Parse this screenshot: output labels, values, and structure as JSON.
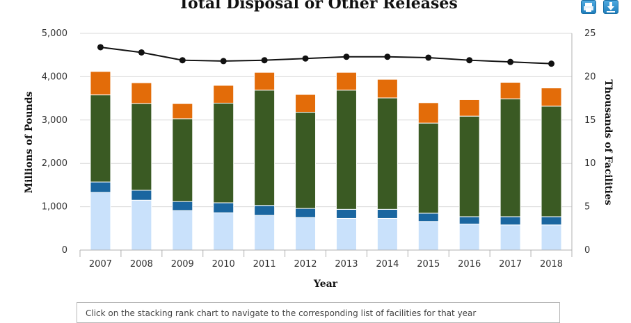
{
  "buttons": {
    "print_icon": "printer-icon",
    "download_icon": "download-icon"
  },
  "note": {
    "text": "Click on the stacking rank chart to navigate to the corresponding list of facilities for that year"
  },
  "chart_data": {
    "type": "bar",
    "title": "Total Disposal or Other Releases",
    "xlabel": "Year",
    "ylabel": "Millions of Pounds",
    "y2label": "Thousands of Facilities",
    "ylim": [
      0,
      5000
    ],
    "y2lim": [
      0,
      25
    ],
    "yticks": [
      "0",
      "1,000",
      "2,000",
      "3,000",
      "4,000",
      "5,000"
    ],
    "y2ticks": [
      "0",
      "5",
      "10",
      "15",
      "20",
      "25"
    ],
    "categories": [
      "2007",
      "2008",
      "2009",
      "2010",
      "2011",
      "2012",
      "2013",
      "2014",
      "2015",
      "2016",
      "2017",
      "2018"
    ],
    "stacked": true,
    "grid": true,
    "series": [
      {
        "color": "#c9e1fb",
        "values": [
          1330,
          1150,
          910,
          860,
          800,
          750,
          730,
          730,
          660,
          600,
          580,
          580
        ]
      },
      {
        "color": "#1a66a0",
        "values": [
          240,
          230,
          210,
          230,
          230,
          210,
          210,
          210,
          190,
          170,
          190,
          190
        ]
      },
      {
        "color": "#3a5a23",
        "values": [
          2010,
          2000,
          1910,
          2300,
          2660,
          2220,
          2750,
          2570,
          2080,
          2320,
          2720,
          2550
        ]
      },
      {
        "color": "#e36c09",
        "values": [
          540,
          480,
          350,
          410,
          410,
          410,
          410,
          430,
          470,
          380,
          380,
          420
        ]
      }
    ],
    "line": {
      "axis": "right",
      "color": "#111111",
      "values": [
        23.4,
        22.8,
        21.9,
        21.8,
        21.9,
        22.1,
        22.3,
        22.3,
        22.2,
        21.9,
        21.7,
        21.5
      ]
    }
  }
}
